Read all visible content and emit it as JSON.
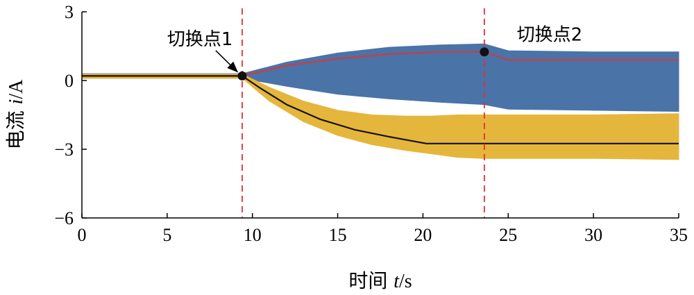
{
  "chart_data": {
    "type": "line",
    "title": "",
    "xlabel": {
      "prefix": "时间 ",
      "var": "t",
      "unit": "/s"
    },
    "ylabel": {
      "prefix": "电流 ",
      "var": "i",
      "unit": "/A"
    },
    "xlim": [
      0,
      35
    ],
    "ylim": [
      -6,
      3
    ],
    "xticks": [
      0,
      5,
      10,
      15,
      20,
      25,
      30,
      35
    ],
    "yticks": [
      -6,
      -3,
      0,
      3
    ],
    "ytick_labels": [
      "−6",
      "−3",
      "0",
      "3"
    ],
    "grid": false,
    "legend": "none",
    "colors": {
      "blue_band": "#4a73a8",
      "yellow_band": "#e5b63c",
      "red_line": "#d33a3a",
      "black_line": "#111111",
      "vline": "#e03030"
    },
    "series": [
      {
        "color_key": "blue_band",
        "kind": "band",
        "x": [
          0,
          9.4,
          12,
          15,
          18,
          21,
          23.6,
          25,
          30,
          35
        ],
        "upper": [
          0.3,
          0.3,
          0.8,
          1.2,
          1.45,
          1.55,
          1.6,
          1.3,
          1.25,
          1.25
        ],
        "lower": [
          0.1,
          0.1,
          -0.25,
          -0.6,
          -0.8,
          -0.95,
          -1.05,
          -1.25,
          -1.3,
          -1.35
        ]
      },
      {
        "color_key": "yellow_band",
        "kind": "band",
        "x": [
          0,
          9.4,
          11,
          13,
          15,
          17,
          19,
          20.5,
          22,
          23.6,
          25,
          30,
          35
        ],
        "upper": [
          0.28,
          0.28,
          -0.3,
          -0.9,
          -1.3,
          -1.5,
          -1.55,
          -1.55,
          -1.5,
          -1.5,
          -1.5,
          -1.5,
          -1.45
        ],
        "lower": [
          0.1,
          0.1,
          -0.9,
          -1.8,
          -2.4,
          -2.8,
          -3.05,
          -3.2,
          -3.35,
          -3.4,
          -3.4,
          -3.4,
          -3.45
        ]
      },
      {
        "color_key": "red_line",
        "kind": "line",
        "x": [
          0,
          9.4,
          12,
          15,
          18,
          21,
          23.6,
          25,
          30,
          35
        ],
        "y": [
          0.2,
          0.2,
          0.65,
          0.95,
          1.15,
          1.25,
          1.25,
          0.9,
          0.9,
          0.9
        ]
      },
      {
        "color_key": "black_line",
        "kind": "line",
        "x": [
          0,
          9.4,
          10.5,
          12,
          14,
          16,
          18,
          20.2,
          21,
          35
        ],
        "y": [
          0.2,
          0.2,
          -0.35,
          -1.05,
          -1.7,
          -2.15,
          -2.45,
          -2.75,
          -2.75,
          -2.75
        ]
      }
    ],
    "vlines": [
      9.4,
      23.6
    ],
    "markers": [
      {
        "x": 9.4,
        "y": 0.2
      },
      {
        "x": 23.6,
        "y": 1.25
      }
    ],
    "annotations": [
      {
        "text": "切换点1",
        "x": 5.0,
        "y": 1.55,
        "arrow_to": [
          9.4,
          0.2
        ]
      },
      {
        "text": "切换点2",
        "x": 25.5,
        "y": 1.75
      }
    ]
  }
}
